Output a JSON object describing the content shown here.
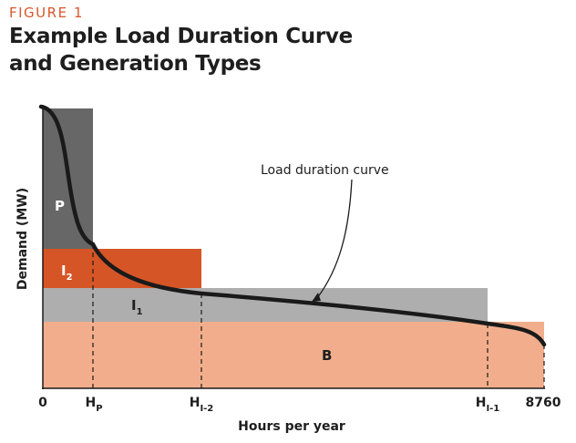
{
  "figure_label": "FIGURE 1",
  "title": {
    "line1": "Example Load Duration Curve",
    "line2": "and Generation Types"
  },
  "chart_data": {
    "type": "load-duration-diagram",
    "title": "Example Load Duration Curve and Generation Types",
    "xlabel": "Hours per year",
    "ylabel": "Demand (MW)",
    "x_ticks": [
      {
        "label": "0",
        "sub": ""
      },
      {
        "label": "H",
        "sub": "P"
      },
      {
        "label": "H",
        "sub": "I-2"
      },
      {
        "label": "H",
        "sub": "I-1"
      },
      {
        "label": "8760",
        "sub": ""
      }
    ],
    "curve_annotation": "Load duration curve",
    "generation_types": [
      {
        "key": "P",
        "label": "P",
        "sub": "",
        "color": "#676767",
        "label_color": "#ffffff"
      },
      {
        "key": "I2",
        "label": "I",
        "sub": "2",
        "color": "#d65526",
        "label_color": "#ffffff"
      },
      {
        "key": "I1",
        "label": "I",
        "sub": "1",
        "color": "#aeaeae",
        "label_color": "#1e1e1e"
      },
      {
        "key": "B",
        "label": "B",
        "sub": "",
        "color": "#f2ae8c",
        "label_color": "#1e1e1e"
      }
    ],
    "curve_color": "#1a1a1a"
  }
}
